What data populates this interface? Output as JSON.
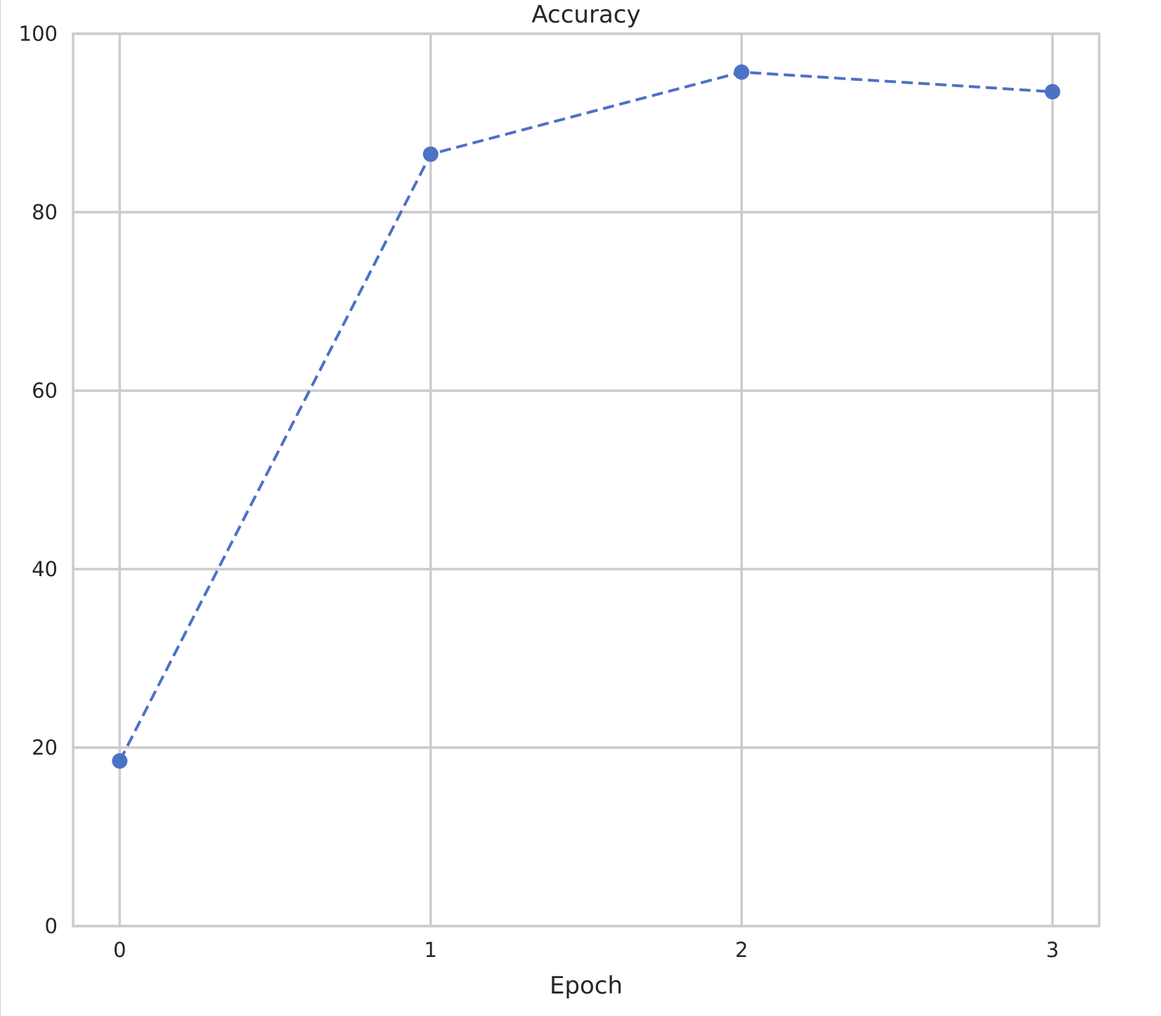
{
  "chart_data": {
    "type": "line",
    "title": "Accuracy",
    "xlabel": "Epoch",
    "ylabel": "",
    "x": [
      0,
      1,
      2,
      3
    ],
    "xticks": [
      0,
      1,
      2,
      3
    ],
    "xtick_labels": [
      "0",
      "1",
      "2",
      "3"
    ],
    "xlim": [
      -0.15,
      3.15
    ],
    "ylim": [
      0,
      100
    ],
    "yticks": [
      0,
      20,
      40,
      60,
      80,
      100
    ],
    "ytick_labels": [
      "0",
      "20",
      "40",
      "60",
      "80",
      "100"
    ],
    "grid": true,
    "legend": "none",
    "series": [
      {
        "values": [
          18.5,
          86.5,
          95.7,
          93.5
        ],
        "color": "#4c72c4",
        "line_style": "dashed",
        "marker": "circle"
      }
    ]
  }
}
